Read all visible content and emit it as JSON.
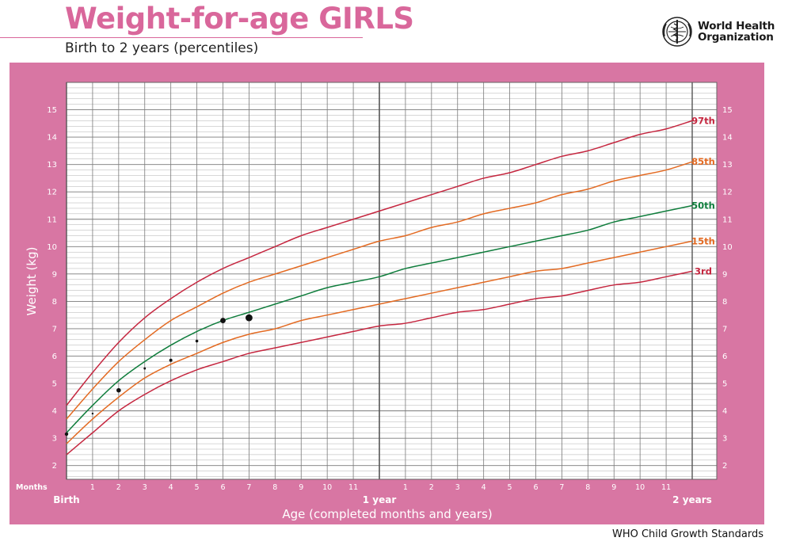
{
  "header": {
    "title": "Weight-for-age GIRLS",
    "subtitle": "Birth to 2 years (percentiles)",
    "org_line1": "World Health",
    "org_line2": "Organization"
  },
  "footer": {
    "text": "WHO Child Growth Standards"
  },
  "colors": {
    "panel": "#d876a3",
    "grid_major": "#7a7a7a",
    "grid_minor": "#b0b0b0",
    "p97": "#c5263f",
    "p85": "#e36a22",
    "p50": "#0f7d3c",
    "p15": "#e36a22",
    "p3": "#c5263f",
    "points": "#111111"
  },
  "chart_data": {
    "type": "line",
    "title": "Weight-for-age GIRLS",
    "xlabel": "Age (completed months and years)",
    "ylabel": "Weight (kg)",
    "xlim": [
      0,
      24
    ],
    "ylim": [
      1.5,
      16
    ],
    "y_ticks": [
      2,
      3,
      4,
      5,
      6,
      7,
      8,
      9,
      10,
      11,
      12,
      13,
      14,
      15
    ],
    "x_ticks": [
      {
        "m": 0,
        "label": ""
      },
      {
        "m": 1,
        "label": "1"
      },
      {
        "m": 2,
        "label": "2"
      },
      {
        "m": 3,
        "label": "3"
      },
      {
        "m": 4,
        "label": "4"
      },
      {
        "m": 5,
        "label": "5"
      },
      {
        "m": 6,
        "label": "6"
      },
      {
        "m": 7,
        "label": "7"
      },
      {
        "m": 8,
        "label": "8"
      },
      {
        "m": 9,
        "label": "9"
      },
      {
        "m": 10,
        "label": "10"
      },
      {
        "m": 11,
        "label": "11"
      },
      {
        "m": 12,
        "label": ""
      },
      {
        "m": 13,
        "label": "1"
      },
      {
        "m": 14,
        "label": "2"
      },
      {
        "m": 15,
        "label": "3"
      },
      {
        "m": 16,
        "label": "4"
      },
      {
        "m": 17,
        "label": "5"
      },
      {
        "m": 18,
        "label": "6"
      },
      {
        "m": 19,
        "label": "7"
      },
      {
        "m": 20,
        "label": "8"
      },
      {
        "m": 21,
        "label": "9"
      },
      {
        "m": 22,
        "label": "10"
      },
      {
        "m": 23,
        "label": "11"
      },
      {
        "m": 24,
        "label": ""
      }
    ],
    "milestones": [
      {
        "m": 0,
        "label": "Birth"
      },
      {
        "m": 12,
        "label": "1 year"
      },
      {
        "m": 24,
        "label": "2 years"
      }
    ],
    "months_label": "Months",
    "x": [
      0,
      1,
      2,
      3,
      4,
      5,
      6,
      7,
      8,
      9,
      10,
      11,
      12,
      13,
      14,
      15,
      16,
      17,
      18,
      19,
      20,
      21,
      22,
      23,
      24
    ],
    "series": [
      {
        "name": "97th",
        "color_key": "p97",
        "values": [
          4.2,
          5.4,
          6.5,
          7.4,
          8.1,
          8.7,
          9.2,
          9.6,
          10.0,
          10.4,
          10.7,
          11.0,
          11.3,
          11.6,
          11.9,
          12.2,
          12.5,
          12.7,
          13.0,
          13.3,
          13.5,
          13.8,
          14.1,
          14.3,
          14.6
        ]
      },
      {
        "name": "85th",
        "color_key": "p85",
        "values": [
          3.7,
          4.8,
          5.8,
          6.6,
          7.3,
          7.8,
          8.3,
          8.7,
          9.0,
          9.3,
          9.6,
          9.9,
          10.2,
          10.4,
          10.7,
          10.9,
          11.2,
          11.4,
          11.6,
          11.9,
          12.1,
          12.4,
          12.6,
          12.8,
          13.1
        ]
      },
      {
        "name": "50th",
        "color_key": "p50",
        "values": [
          3.2,
          4.2,
          5.1,
          5.8,
          6.4,
          6.9,
          7.3,
          7.6,
          7.9,
          8.2,
          8.5,
          8.7,
          8.9,
          9.2,
          9.4,
          9.6,
          9.8,
          10.0,
          10.2,
          10.4,
          10.6,
          10.9,
          11.1,
          11.3,
          11.5
        ]
      },
      {
        "name": "15th",
        "color_key": "p15",
        "values": [
          2.8,
          3.7,
          4.5,
          5.2,
          5.7,
          6.1,
          6.5,
          6.8,
          7.0,
          7.3,
          7.5,
          7.7,
          7.9,
          8.1,
          8.3,
          8.5,
          8.7,
          8.9,
          9.1,
          9.2,
          9.4,
          9.6,
          9.8,
          10.0,
          10.2
        ]
      },
      {
        "name": "3rd",
        "color_key": "p3",
        "values": [
          2.4,
          3.2,
          4.0,
          4.6,
          5.1,
          5.5,
          5.8,
          6.1,
          6.3,
          6.5,
          6.7,
          6.9,
          7.1,
          7.2,
          7.4,
          7.6,
          7.7,
          7.9,
          8.1,
          8.2,
          8.4,
          8.6,
          8.7,
          8.9,
          9.1
        ]
      }
    ],
    "points": [
      {
        "x": 0.0,
        "y": 3.15,
        "size": 2.2
      },
      {
        "x": 1.0,
        "y": 3.9,
        "size": 1.2
      },
      {
        "x": 2.0,
        "y": 4.75,
        "size": 2.8
      },
      {
        "x": 3.0,
        "y": 5.55,
        "size": 1.4
      },
      {
        "x": 4.0,
        "y": 5.85,
        "size": 2.0
      },
      {
        "x": 5.0,
        "y": 6.55,
        "size": 1.8
      },
      {
        "x": 6.0,
        "y": 7.3,
        "size": 3.4
      },
      {
        "x": 7.0,
        "y": 7.4,
        "size": 4.4
      }
    ]
  }
}
